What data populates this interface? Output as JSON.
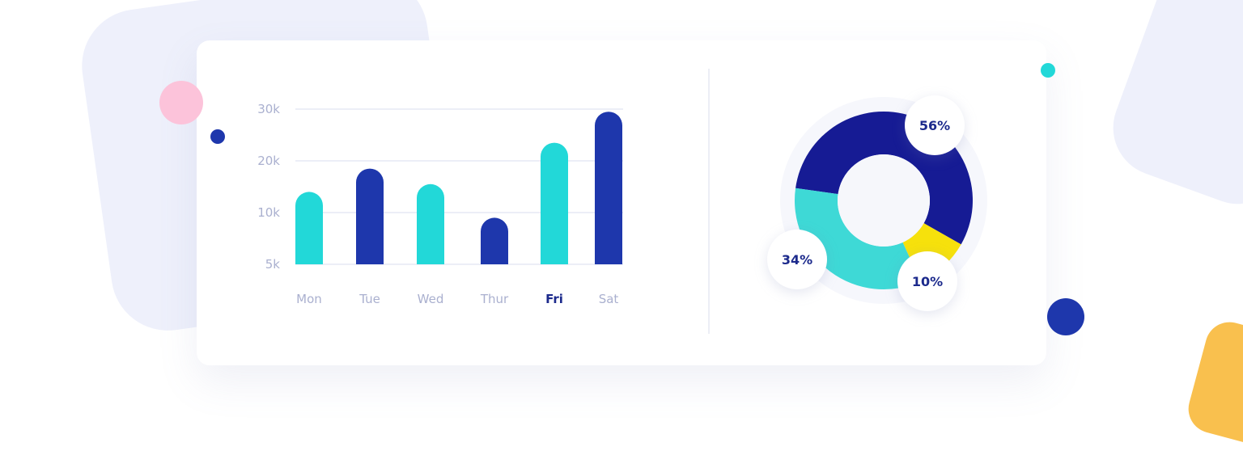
{
  "colors": {
    "cyan": "#22d8d8",
    "navy": "#1e37ac",
    "donut_navy": "#161b94",
    "donut_cyan": "#3ed9d6",
    "yellow": "#f6e10c",
    "axis_text": "#aab0cf",
    "label_text": "#1c2a8c"
  },
  "chart_data": [
    {
      "type": "bar",
      "categories": [
        "Mon",
        "Tue",
        "Wed",
        "Thur",
        "Fri",
        "Sat"
      ],
      "values": [
        14000,
        18500,
        15500,
        9500,
        23500,
        29500
      ],
      "bar_colors": [
        "cyan",
        "navy",
        "cyan",
        "navy",
        "cyan",
        "navy"
      ],
      "highlighted_category": "Fri",
      "y_ticks": [
        {
          "value": 5000,
          "label": "5k"
        },
        {
          "value": 10000,
          "label": "10k"
        },
        {
          "value": 20000,
          "label": "20k"
        },
        {
          "value": 30000,
          "label": "30k"
        }
      ],
      "ylim": [
        5000,
        30000
      ],
      "grid": true
    },
    {
      "type": "pie",
      "donut": true,
      "slices": [
        {
          "value": 56,
          "label": "56%",
          "color": "donut_navy"
        },
        {
          "value": 10,
          "label": "10%",
          "color": "yellow"
        },
        {
          "value": 34,
          "label": "34%",
          "color": "donut_cyan"
        }
      ]
    }
  ]
}
